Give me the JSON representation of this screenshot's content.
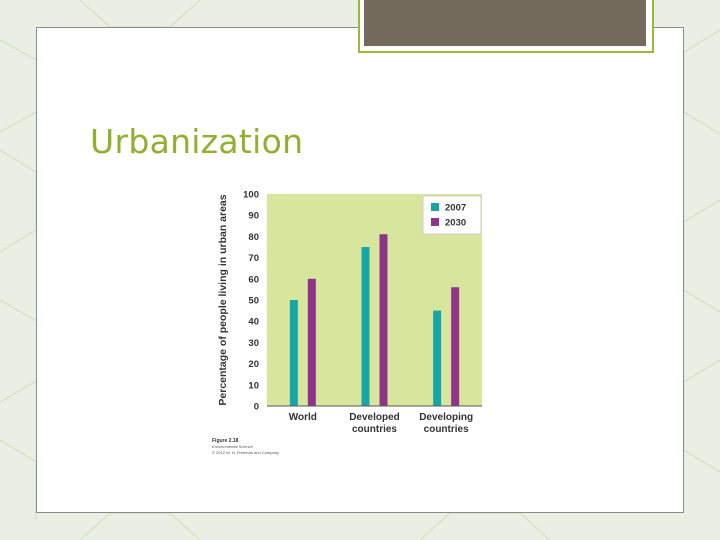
{
  "slide": {
    "title": "Urbanization",
    "colors": {
      "title": "#8fb12f",
      "background": "#e9f0e3",
      "tab": "#746a5c",
      "tab_border": "#9ab83b"
    }
  },
  "chart_data": {
    "type": "bar",
    "title": "",
    "xlabel": "",
    "ylabel": "Percentage of people living in urban areas",
    "ylim": [
      0,
      100
    ],
    "yticks": [
      0,
      10,
      20,
      30,
      40,
      50,
      60,
      70,
      80,
      90,
      100
    ],
    "categories": [
      [
        "World"
      ],
      [
        "Developed",
        "countries"
      ],
      [
        "Developing",
        "countries"
      ]
    ],
    "series": [
      {
        "name": "2007",
        "values": [
          50,
          75,
          45
        ],
        "color": "#17a5a8"
      },
      {
        "name": "2030",
        "values": [
          60,
          81,
          56
        ],
        "color": "#8e3588"
      }
    ],
    "grid": false,
    "legend": "top-right",
    "plot_background": "#d8e69d",
    "caption": {
      "figure": "Figure 2.18",
      "source": "Environmental Science",
      "copyright": "© 2012 W. H. Freeman and Company"
    }
  }
}
